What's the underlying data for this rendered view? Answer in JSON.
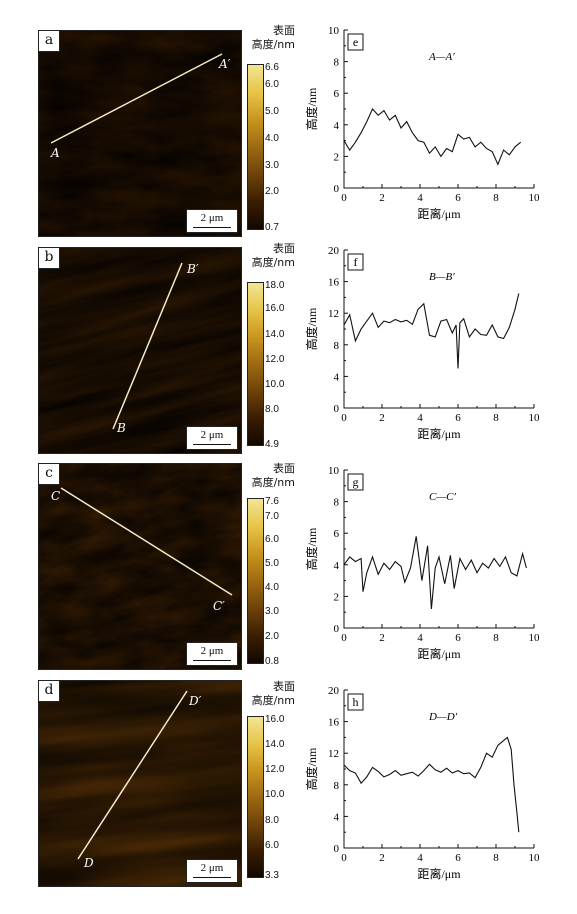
{
  "colorbar_title": [
    "表面",
    "高度/nm"
  ],
  "scale_bar": "2 μm",
  "colormap": [
    "#120800",
    "#3a1e03",
    "#6e4309",
    "#9d6a12",
    "#c9951f",
    "#e6c547",
    "#f3e595"
  ],
  "panels": [
    {
      "afm_label": "a",
      "profile_label": "e",
      "start_label": "A",
      "end_label": "A′",
      "line_title": "A—A′",
      "colorbar_ticks": [
        "6.6",
        "6.0",
        "5.0",
        "4.0",
        "3.0",
        "2.0",
        "0.7"
      ]
    },
    {
      "afm_label": "b",
      "profile_label": "f",
      "start_label": "B",
      "end_label": "B′",
      "line_title": "B—B′",
      "colorbar_ticks": [
        "18.0",
        "16.0",
        "14.0",
        "12.0",
        "10.0",
        "8.0",
        "4.9"
      ]
    },
    {
      "afm_label": "c",
      "profile_label": "g",
      "start_label": "C",
      "end_label": "C′",
      "line_title": "C—C′",
      "colorbar_ticks": [
        "7.6",
        "7.0",
        "6.0",
        "5.0",
        "4.0",
        "3.0",
        "2.0",
        "0.8"
      ]
    },
    {
      "afm_label": "d",
      "profile_label": "h",
      "start_label": "D",
      "end_label": "D′",
      "line_title": "D—D′",
      "colorbar_ticks": [
        "16.0",
        "14.0",
        "12.0",
        "10.0",
        "8.0",
        "6.0",
        "3.3"
      ]
    }
  ],
  "chart_data": [
    {
      "type": "line",
      "title": "A—A′",
      "xlabel": "距离/μm",
      "ylabel": "高度/nm",
      "xlim": [
        0,
        10
      ],
      "ylim": [
        0,
        10
      ],
      "xticks": [
        0,
        2,
        4,
        6,
        8,
        10
      ],
      "yticks": [
        0,
        2,
        4,
        6,
        8,
        10
      ],
      "x": [
        0,
        0.3,
        0.6,
        0.9,
        1.2,
        1.5,
        1.8,
        2.1,
        2.4,
        2.7,
        3.0,
        3.3,
        3.6,
        3.9,
        4.2,
        4.5,
        4.8,
        5.1,
        5.4,
        5.7,
        6.0,
        6.3,
        6.6,
        6.9,
        7.2,
        7.5,
        7.8,
        8.1,
        8.4,
        8.7,
        9.0,
        9.3
      ],
      "y": [
        3.0,
        2.4,
        2.9,
        3.5,
        4.2,
        5.0,
        4.6,
        4.9,
        4.3,
        4.6,
        3.8,
        4.2,
        3.5,
        3.0,
        2.9,
        2.2,
        2.6,
        2.0,
        2.5,
        2.3,
        3.4,
        3.1,
        3.2,
        2.6,
        2.9,
        2.5,
        2.3,
        1.5,
        2.4,
        2.1,
        2.6,
        2.9
      ]
    },
    {
      "type": "line",
      "title": "B—B′",
      "xlabel": "距离/μm",
      "ylabel": "高度/nm",
      "xlim": [
        0,
        10
      ],
      "ylim": [
        0,
        20
      ],
      "xticks": [
        0,
        2,
        4,
        6,
        8,
        10
      ],
      "yticks": [
        0,
        4,
        8,
        12,
        16,
        20
      ],
      "x": [
        0,
        0.3,
        0.6,
        0.9,
        1.2,
        1.5,
        1.8,
        2.1,
        2.4,
        2.7,
        3.0,
        3.3,
        3.6,
        3.9,
        4.2,
        4.5,
        4.8,
        5.1,
        5.4,
        5.7,
        5.9,
        6.0,
        6.1,
        6.3,
        6.6,
        6.9,
        7.2,
        7.5,
        7.8,
        8.1,
        8.4,
        8.7,
        9.0,
        9.2
      ],
      "y": [
        10.5,
        11.8,
        8.5,
        10.0,
        11.0,
        12.0,
        10.2,
        11.0,
        10.8,
        11.2,
        10.9,
        11.1,
        10.6,
        12.5,
        13.2,
        9.2,
        9.0,
        11.0,
        11.2,
        9.5,
        10.5,
        5.0,
        10.8,
        11.3,
        9.0,
        10.0,
        9.3,
        9.2,
        10.5,
        9.0,
        8.8,
        10.2,
        12.5,
        14.5
      ]
    },
    {
      "type": "line",
      "title": "C—C′",
      "xlabel": "距离/μm",
      "ylabel": "高度/nm",
      "xlim": [
        0,
        10
      ],
      "ylim": [
        0,
        10
      ],
      "xticks": [
        0,
        2,
        4,
        6,
        8,
        10
      ],
      "yticks": [
        0,
        2,
        4,
        6,
        8,
        10
      ],
      "x": [
        0,
        0.3,
        0.6,
        0.9,
        1.0,
        1.2,
        1.5,
        1.8,
        2.1,
        2.4,
        2.7,
        3.0,
        3.2,
        3.5,
        3.8,
        4.1,
        4.4,
        4.6,
        4.8,
        5.0,
        5.3,
        5.6,
        5.8,
        6.1,
        6.4,
        6.7,
        7.0,
        7.3,
        7.6,
        7.9,
        8.2,
        8.5,
        8.8,
        9.1,
        9.4,
        9.6
      ],
      "y": [
        4.0,
        4.5,
        4.2,
        4.4,
        2.3,
        3.5,
        4.5,
        3.4,
        4.1,
        3.7,
        4.2,
        3.9,
        2.9,
        3.8,
        5.8,
        3.0,
        5.2,
        1.2,
        3.8,
        4.5,
        2.8,
        4.6,
        2.5,
        4.4,
        3.7,
        4.3,
        3.5,
        4.1,
        3.8,
        4.4,
        3.9,
        4.5,
        3.5,
        3.3,
        4.7,
        3.8
      ]
    },
    {
      "type": "line",
      "title": "D—D′",
      "xlabel": "距离/μm",
      "ylabel": "高度/nm",
      "xlim": [
        0,
        10
      ],
      "ylim": [
        0,
        20
      ],
      "xticks": [
        0,
        2,
        4,
        6,
        8,
        10
      ],
      "yticks": [
        0,
        4,
        8,
        12,
        16,
        20
      ],
      "x": [
        0,
        0.3,
        0.6,
        0.9,
        1.2,
        1.5,
        1.8,
        2.1,
        2.4,
        2.7,
        3.0,
        3.3,
        3.6,
        3.9,
        4.2,
        4.5,
        4.8,
        5.1,
        5.4,
        5.7,
        6.0,
        6.3,
        6.6,
        6.9,
        7.2,
        7.5,
        7.8,
        8.1,
        8.4,
        8.6,
        8.8,
        8.95,
        9.1,
        9.2
      ],
      "y": [
        10.5,
        9.8,
        9.5,
        8.2,
        9.0,
        10.2,
        9.7,
        9.0,
        9.3,
        9.8,
        9.2,
        9.4,
        9.6,
        9.1,
        9.8,
        10.6,
        9.9,
        9.6,
        10.1,
        9.5,
        9.8,
        9.4,
        9.5,
        8.9,
        10.2,
        12.0,
        11.5,
        13.0,
        13.6,
        14.0,
        12.5,
        8.0,
        4.5,
        2.0
      ]
    }
  ]
}
